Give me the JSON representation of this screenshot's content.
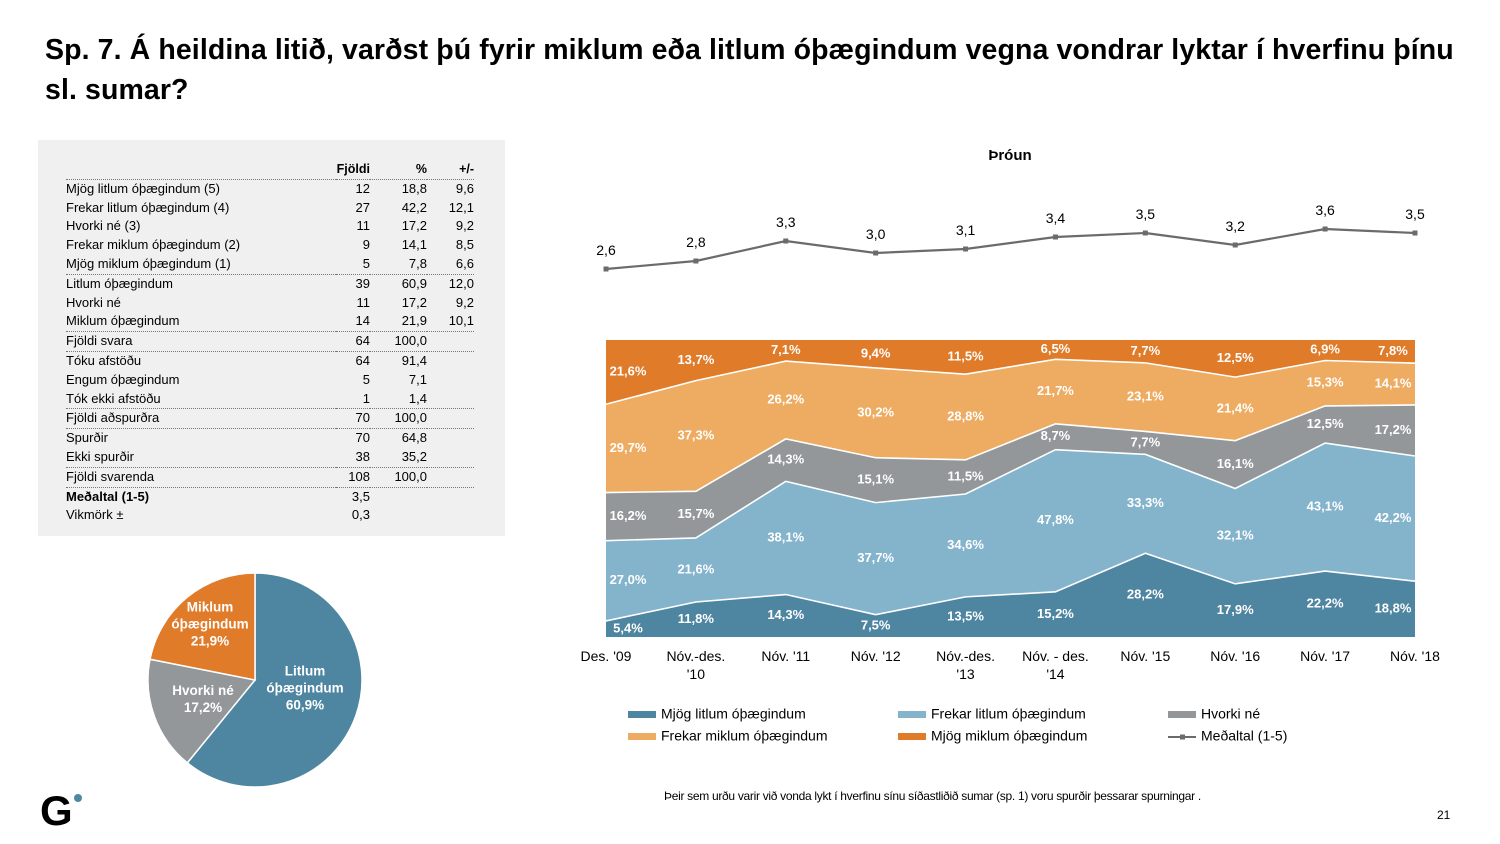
{
  "title": "Sp. 7. Á heildina litið, varðst þú fyrir miklum eða litlum óþægindum vegna vondrar lyktar í hverfinu þínu sl. sumar?",
  "table": {
    "headers": [
      "",
      "Fjöldi",
      "%",
      "+/-"
    ],
    "rows": [
      {
        "label": "Mjög litlum óþægindum (5)",
        "n": "12",
        "pct": "18,8",
        "pm": "9,6",
        "sep": false,
        "bold": false
      },
      {
        "label": "Frekar litlum óþægindum (4)",
        "n": "27",
        "pct": "42,2",
        "pm": "12,1",
        "sep": false,
        "bold": false
      },
      {
        "label": "Hvorki né (3)",
        "n": "11",
        "pct": "17,2",
        "pm": "9,2",
        "sep": false,
        "bold": false
      },
      {
        "label": "Frekar miklum óþægindum (2)",
        "n": "9",
        "pct": "14,1",
        "pm": "8,5",
        "sep": false,
        "bold": false
      },
      {
        "label": "Mjög miklum óþægindum (1)",
        "n": "5",
        "pct": "7,8",
        "pm": "6,6",
        "sep": true,
        "bold": false
      },
      {
        "label": "Litlum óþægindum",
        "n": "39",
        "pct": "60,9",
        "pm": "12,0",
        "sep": false,
        "bold": false
      },
      {
        "label": "Hvorki né",
        "n": "11",
        "pct": "17,2",
        "pm": "9,2",
        "sep": false,
        "bold": false
      },
      {
        "label": "Miklum óþægindum",
        "n": "14",
        "pct": "21,9",
        "pm": "10,1",
        "sep": true,
        "bold": false
      },
      {
        "label": "Fjöldi svara",
        "n": "64",
        "pct": "100,0",
        "pm": "",
        "sep": true,
        "bold": false
      },
      {
        "label": "Tóku afstöðu",
        "n": "64",
        "pct": "91,4",
        "pm": "",
        "sep": false,
        "bold": false
      },
      {
        "label": "Engum óþægindum",
        "n": "5",
        "pct": "7,1",
        "pm": "",
        "sep": false,
        "bold": false
      },
      {
        "label": "Tók ekki afstöðu",
        "n": "1",
        "pct": "1,4",
        "pm": "",
        "sep": true,
        "bold": false
      },
      {
        "label": "Fjöldi aðspurðra",
        "n": "70",
        "pct": "100,0",
        "pm": "",
        "sep": true,
        "bold": false
      },
      {
        "label": "Spurðir",
        "n": "70",
        "pct": "64,8",
        "pm": "",
        "sep": false,
        "bold": false
      },
      {
        "label": "Ekki spurðir",
        "n": "38",
        "pct": "35,2",
        "pm": "",
        "sep": true,
        "bold": false
      },
      {
        "label": "Fjöldi svarenda",
        "n": "108",
        "pct": "100,0",
        "pm": "",
        "sep": true,
        "bold": false
      },
      {
        "label": "Meðaltal (1-5)",
        "n": "3,5",
        "pct": "",
        "pm": "",
        "sep": false,
        "bold": true
      },
      {
        "label": "Vikmörk ±",
        "n": "0,3",
        "pct": "",
        "pm": "",
        "sep": false,
        "bold": false
      }
    ]
  },
  "colors": {
    "mjog_litlum": "#4e85a1",
    "frekar_litlum": "#84b3cc",
    "hvorki": "#939799",
    "frekar_miklum": "#eeac62",
    "mjog_miklum": "#e07b2a",
    "mean_line": "#6b6b6b"
  },
  "chart_data": [
    {
      "type": "pie",
      "title": "",
      "slices": [
        {
          "label": "Litlum óþægindum",
          "value": 60.9,
          "display": "60,9%",
          "color": "#4e85a1"
        },
        {
          "label": "Hvorki né",
          "value": 17.2,
          "display": "17,2%",
          "color": "#939799"
        },
        {
          "label": "Miklum óþægindum",
          "value": 21.9,
          "display": "21,9%",
          "color": "#e07b2a"
        }
      ]
    },
    {
      "type": "line",
      "title": "Þróun",
      "series_name": "Meðaltal (1-5)",
      "categories": [
        "Des. '09",
        "Nóv.-des. '10",
        "Nóv. '11",
        "Nóv. '12",
        "Nóv.-des. '13",
        "Nóv. - des. '14",
        "Nóv. '15",
        "Nóv. '16",
        "Nóv. '17",
        "Nóv. '18"
      ],
      "values": [
        2.6,
        2.8,
        3.3,
        3.0,
        3.1,
        3.4,
        3.5,
        3.2,
        3.6,
        3.5
      ],
      "labels": [
        "2,6",
        "2,8",
        "3,3",
        "3,0",
        "3,1",
        "3,4",
        "3,5",
        "3,2",
        "3,6",
        "3,5"
      ]
    },
    {
      "type": "area",
      "stacked": true,
      "ylim": [
        0,
        100
      ],
      "categories": [
        [
          "Des. '09"
        ],
        [
          "Nóv.-des.",
          "'10"
        ],
        [
          "Nóv. '11"
        ],
        [
          "Nóv. '12"
        ],
        [
          "Nóv.-des.",
          "'13"
        ],
        [
          "Nóv. - des.",
          "'14"
        ],
        [
          "Nóv. '15"
        ],
        [
          "Nóv. '16"
        ],
        [
          "Nóv. '17"
        ],
        [
          "Nóv. '18"
        ]
      ],
      "series": [
        {
          "name": "Mjög litlum óþægindum",
          "color": "#4e85a1",
          "values": [
            5.4,
            11.8,
            14.3,
            7.5,
            13.5,
            15.2,
            28.2,
            17.9,
            22.2,
            18.8
          ]
        },
        {
          "name": "Frekar litlum óþægindum",
          "color": "#84b3cc",
          "values": [
            27.0,
            21.6,
            38.1,
            37.7,
            34.6,
            47.8,
            33.3,
            32.1,
            43.1,
            42.2
          ]
        },
        {
          "name": "Hvorki né",
          "color": "#939799",
          "values": [
            16.2,
            15.7,
            14.3,
            15.1,
            11.5,
            8.7,
            7.7,
            16.1,
            12.5,
            17.2
          ]
        },
        {
          "name": "Frekar miklum óþægindum",
          "color": "#eeac62",
          "values": [
            29.7,
            37.3,
            26.2,
            30.2,
            28.8,
            21.7,
            23.1,
            21.4,
            15.3,
            14.1
          ]
        },
        {
          "name": "Mjög miklum óþægindum",
          "color": "#e07b2a",
          "values": [
            21.6,
            13.7,
            7.1,
            9.4,
            11.5,
            6.5,
            7.7,
            12.5,
            6.9,
            7.8
          ]
        }
      ],
      "legend": {
        "placement": "bottom",
        "items": [
          {
            "label": "Mjög litlum óþægindum",
            "color": "#4e85a1",
            "kind": "box"
          },
          {
            "label": "Frekar litlum óþægindum",
            "color": "#84b3cc",
            "kind": "box"
          },
          {
            "label": "Hvorki né",
            "color": "#939799",
            "kind": "box"
          },
          {
            "label": "Frekar miklum óþægindum",
            "color": "#eeac62",
            "kind": "box"
          },
          {
            "label": "Mjög miklum óþægindum",
            "color": "#e07b2a",
            "kind": "box"
          },
          {
            "label": "Meðaltal (1-5)",
            "color": "#6b6b6b",
            "kind": "line"
          }
        ]
      }
    }
  ],
  "footnote": "Þeir sem urðu varir við vonda lykt í hverfinu sínu síðastliðið sumar (sp. 1) voru spurðir þessarar spurningar .",
  "page_number": "21",
  "logo": {
    "text": "G",
    "icon": "gallup-logo-icon"
  }
}
